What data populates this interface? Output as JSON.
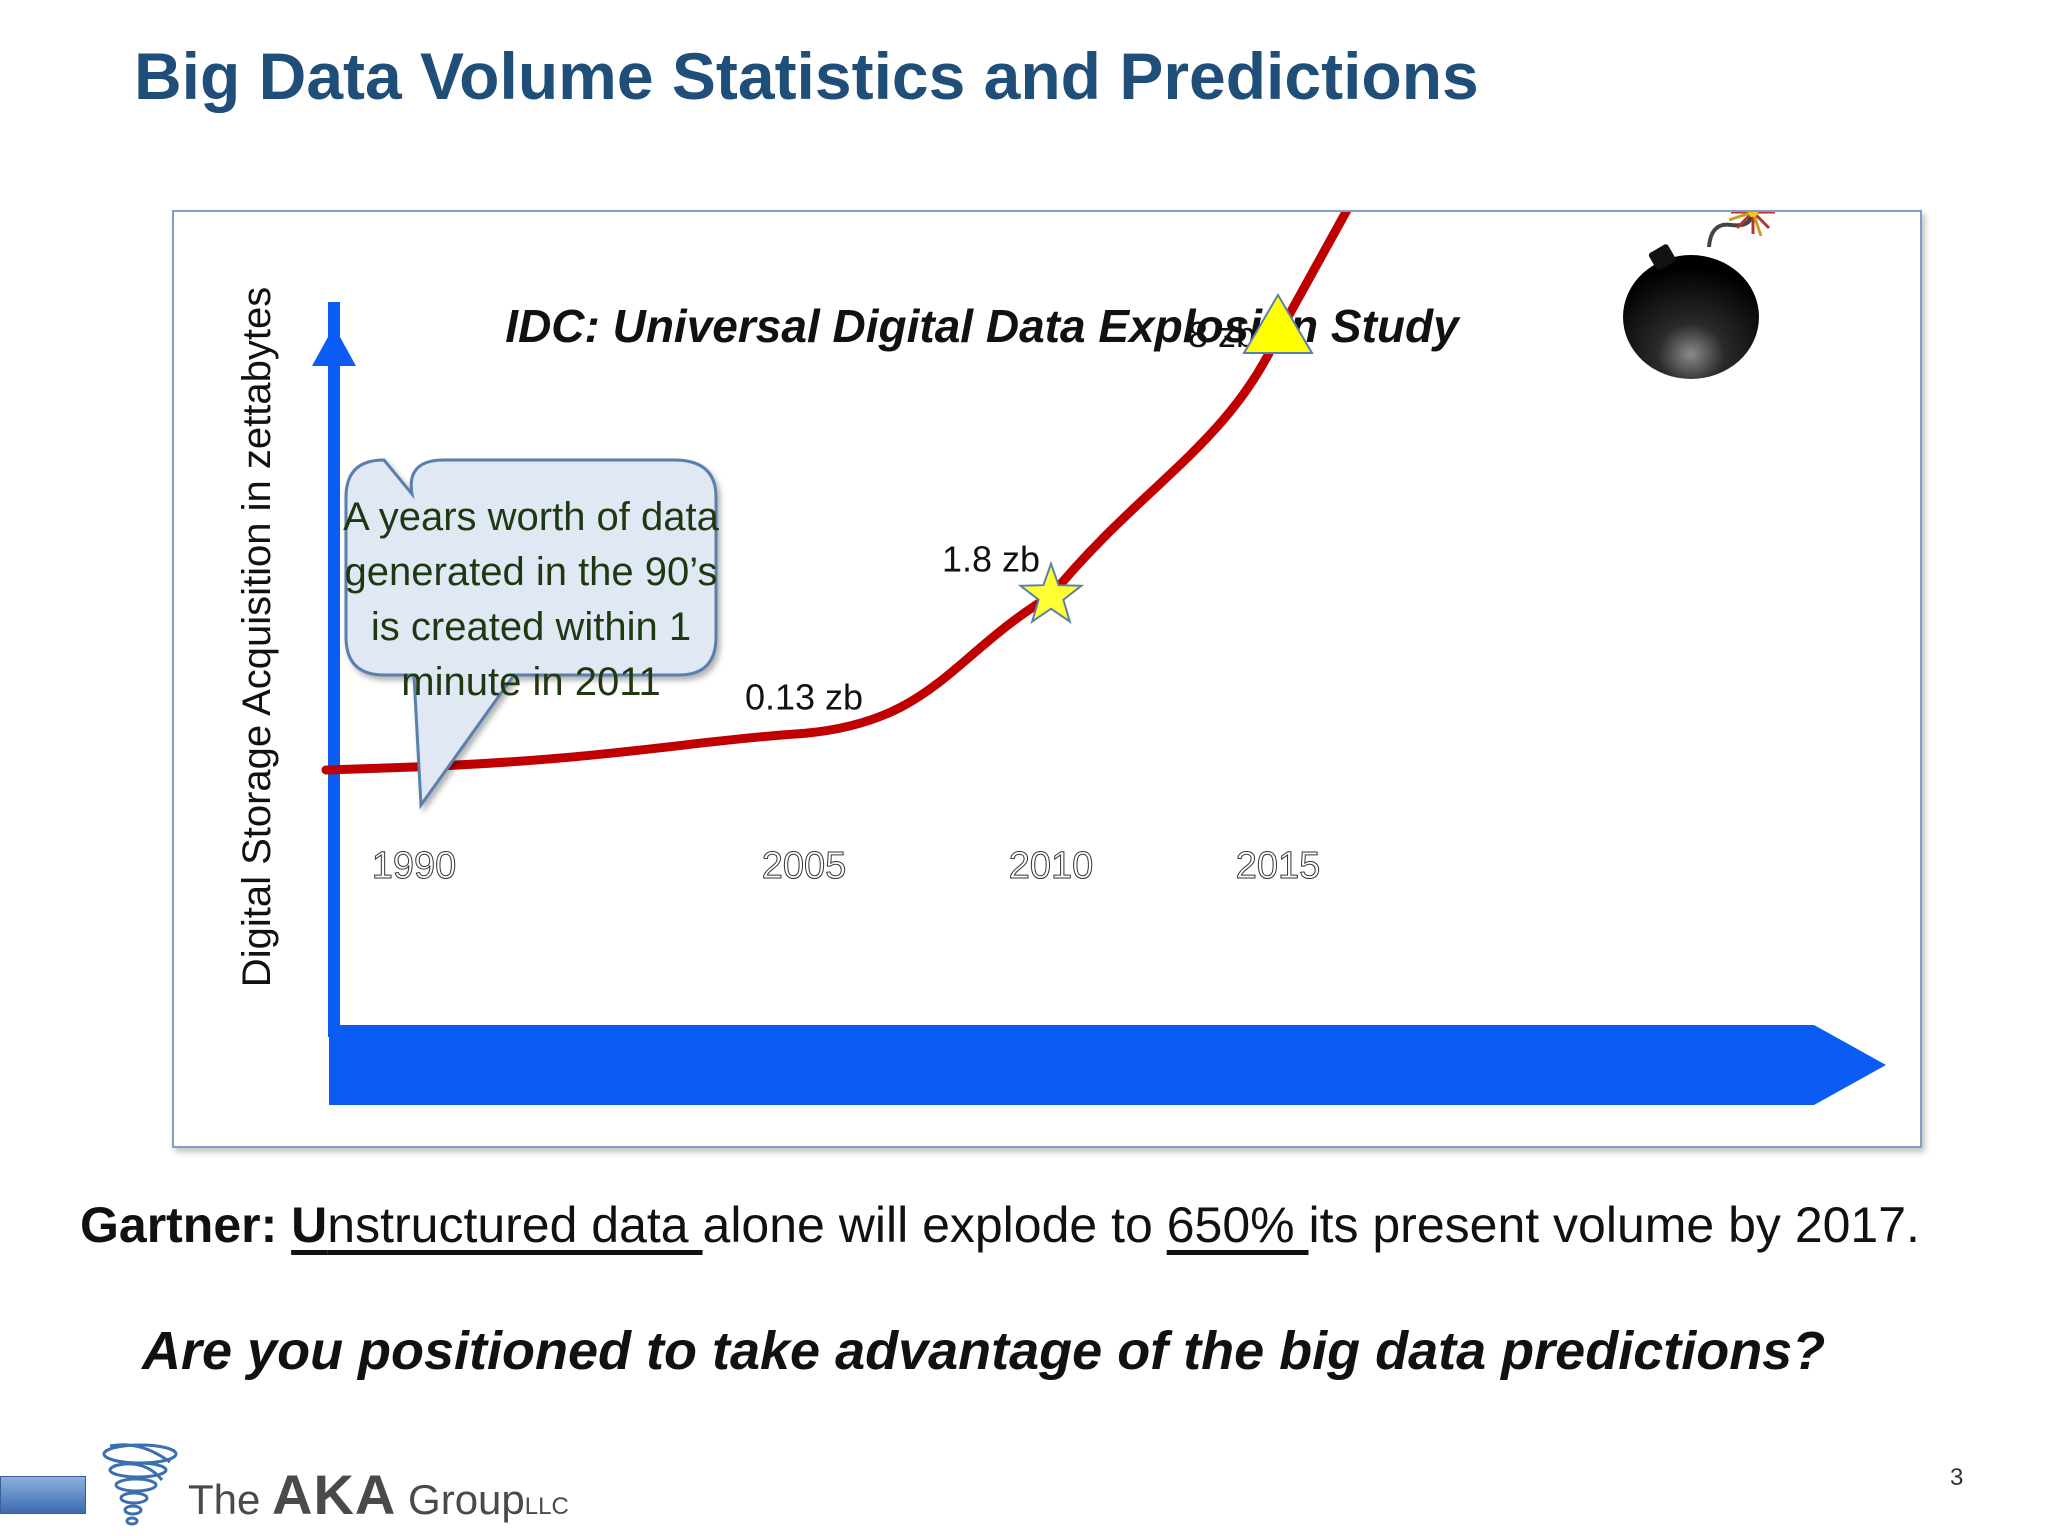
{
  "slide": {
    "title": "Big Data Volume Statistics and Predictions",
    "gartner": {
      "prefix": "Gartner: ",
      "u_bold": "U",
      "u_rest": "nstructured data ",
      "middle": "alone will explode to ",
      "pct": "650% ",
      "end": "its present volume by 2017."
    },
    "question": "Are you positioned to take advantage of the big data predictions?",
    "page_number": "3",
    "logo": {
      "the": "The ",
      "aka": "AKA",
      "group": " Group",
      "llc": "LLC"
    }
  },
  "colors": {
    "title": "#1f4e79",
    "axis": "#0a5cf5",
    "curve": "#c00000",
    "callout_fill": "#dfe8f3",
    "callout_border": "#5a7fad",
    "star": "#ffff33",
    "triangle": "#ffff00"
  },
  "chart_data": {
    "type": "line",
    "title": "IDC: Universal Digital Data Explosion Study",
    "ylabel": "Digital Storage Acquisition in zettabytes",
    "xlabel": "",
    "x_ticks": [
      "1990",
      "2005",
      "2010",
      "2015"
    ],
    "series": [
      {
        "points": [
          {
            "x": 1990,
            "y": 0
          },
          {
            "x": 2005,
            "y": 0.13,
            "label": "0.13 zb"
          },
          {
            "x": 2010,
            "y": 1.8,
            "label": "1.8 zb",
            "marker": "star"
          },
          {
            "x": 2015,
            "y": 8,
            "label": "8 zb",
            "marker": "triangle"
          }
        ]
      }
    ],
    "callout": "A years worth of data generated in the 90’s is created within 1 minute in 2011",
    "callout_lines": [
      "A years worth of data",
      "generated in the 90’s",
      "is created within 1",
      "minute in 2011"
    ],
    "end_icon": "bomb-icon"
  }
}
